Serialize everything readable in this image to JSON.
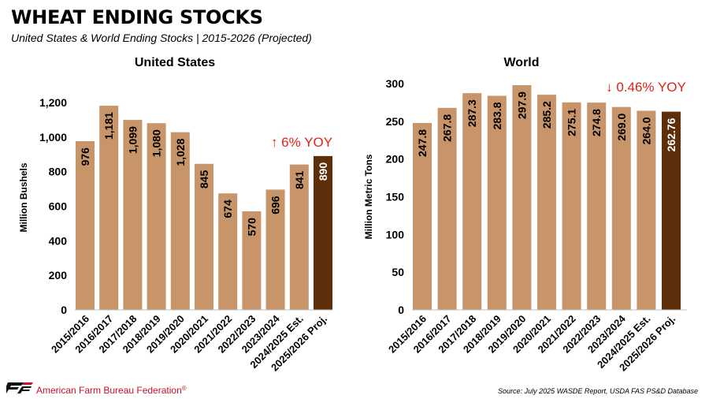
{
  "title": "WHEAT ENDING STOCKS",
  "subtitle": "United States & World Ending Stocks | 2015-2026 (Projected)",
  "colors": {
    "bar": "#C8956A",
    "highlight": "#5C2E0A",
    "accent": "#E2231A"
  },
  "footer": {
    "organization": "American Farm Bureau Federation",
    "trademark": "®",
    "source": "Source: July 2025 WASDE Report, USDA FAS PS&D Database",
    "logo_icon": "afbf-logo-icon"
  },
  "chart_data": [
    {
      "id": "us",
      "type": "bar",
      "title": "United States",
      "ylabel": "Million Bushels",
      "xlabel": "",
      "ylim": [
        0,
        1300
      ],
      "yticks": [
        0,
        200,
        400,
        600,
        800,
        1000,
        1200
      ],
      "ytick_labels": [
        "0",
        "200",
        "400",
        "600",
        "800",
        "1,000",
        "1,200"
      ],
      "categories": [
        "2015/2016",
        "2016/2017",
        "2017/2018",
        "2018/2019",
        "2019/2020",
        "2020/2021",
        "2021/2022",
        "2022/2023",
        "2023/2024",
        "2024/2025 Est.",
        "2025/2026 Proj."
      ],
      "values": [
        976,
        1181,
        1099,
        1080,
        1028,
        845,
        674,
        570,
        696,
        841,
        890
      ],
      "value_labels": [
        "976",
        "1,181",
        "1,099",
        "1,080",
        "1,028",
        "845",
        "674",
        "570",
        "696",
        "841",
        "890"
      ],
      "highlight_index": 10,
      "annotation": {
        "arrow": "↑",
        "text": "6% YOY",
        "direction": "up"
      }
    },
    {
      "id": "world",
      "type": "bar",
      "title": "World",
      "ylabel": "Million Metric Tons",
      "xlabel": "",
      "ylim": [
        0,
        300
      ],
      "yticks": [
        0,
        50,
        100,
        150,
        200,
        250,
        300
      ],
      "ytick_labels": [
        "0",
        "50",
        "100",
        "150",
        "200",
        "250",
        "300"
      ],
      "categories": [
        "2015/2016",
        "2016/2017",
        "2017/2018",
        "2018/2019",
        "2019/2020",
        "2020/2021",
        "2021/2022",
        "2022/2023",
        "2023/2024",
        "2024/2025 Est.",
        "2025/2026 Proj."
      ],
      "values": [
        247.8,
        267.8,
        287.3,
        283.8,
        297.9,
        285.2,
        275.1,
        274.8,
        269.0,
        264.0,
        262.76
      ],
      "value_labels": [
        "247.8",
        "267.8",
        "287.3",
        "283.8",
        "297.9",
        "285.2",
        "275.1",
        "274.8",
        "269.0",
        "264.0",
        "262.76"
      ],
      "highlight_index": 10,
      "annotation": {
        "arrow": "↓",
        "text": "0.46% YOY",
        "direction": "down"
      }
    }
  ]
}
